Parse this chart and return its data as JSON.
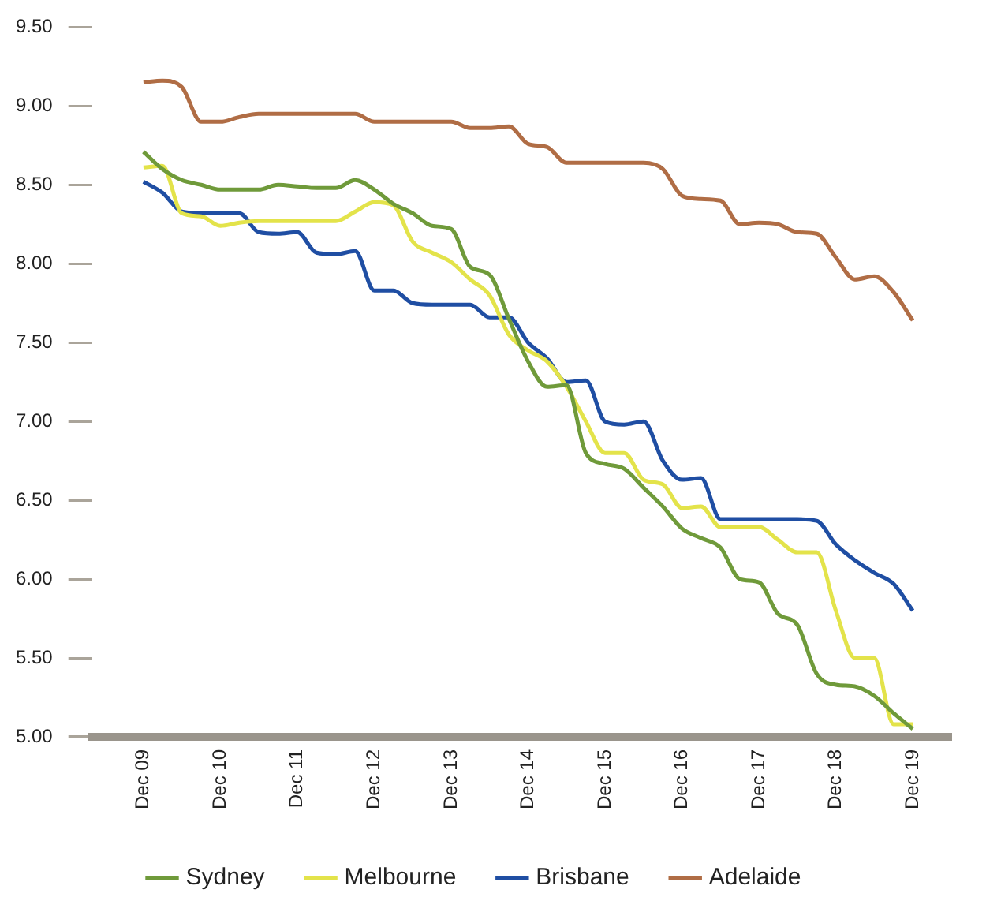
{
  "chart_data": {
    "type": "line",
    "legend": "bottom",
    "marker": "none",
    "grid": false,
    "x": [
      "2009-12",
      "2010-03",
      "2010-06",
      "2010-09",
      "2010-12",
      "2011-03",
      "2011-06",
      "2011-09",
      "2011-12",
      "2012-03",
      "2012-06",
      "2012-09",
      "2012-12",
      "2013-03",
      "2013-06",
      "2013-09",
      "2013-12",
      "2014-03",
      "2014-06",
      "2014-09",
      "2014-12",
      "2015-03",
      "2015-06",
      "2015-09",
      "2015-12",
      "2016-03",
      "2016-06",
      "2016-09",
      "2016-12",
      "2017-03",
      "2017-06",
      "2017-09",
      "2017-12",
      "2018-03",
      "2018-06",
      "2018-09",
      "2018-12",
      "2019-03",
      "2019-06",
      "2019-09",
      "2019-12"
    ],
    "xlim": [
      "2009-04",
      "2020-06"
    ],
    "xticks": [
      {
        "value": "2009-12",
        "label": "Dec 09"
      },
      {
        "value": "2010-12",
        "label": "Dec 10"
      },
      {
        "value": "2011-12",
        "label": "Dec 11"
      },
      {
        "value": "2012-12",
        "label": "Dec 12"
      },
      {
        "value": "2013-12",
        "label": "Dec 13"
      },
      {
        "value": "2014-12",
        "label": "Dec 14"
      },
      {
        "value": "2015-12",
        "label": "Dec 15"
      },
      {
        "value": "2016-12",
        "label": "Dec 16"
      },
      {
        "value": "2017-12",
        "label": "Dec 17"
      },
      {
        "value": "2018-12",
        "label": "Dec 18"
      },
      {
        "value": "2019-12",
        "label": "Dec 19"
      }
    ],
    "ylim": [
      5,
      9.5
    ],
    "yticks": [
      {
        "value": 5,
        "label": "5.00"
      },
      {
        "value": 5.5,
        "label": "5.50"
      },
      {
        "value": 6,
        "label": "6.00"
      },
      {
        "value": 6.5,
        "label": "6.50"
      },
      {
        "value": 7,
        "label": "7.00"
      },
      {
        "value": 7.5,
        "label": "7.50"
      },
      {
        "value": 8,
        "label": "8.00"
      },
      {
        "value": 8.5,
        "label": "8.50"
      },
      {
        "value": 9,
        "label": "9.00"
      },
      {
        "value": 9.5,
        "label": "9.50"
      }
    ],
    "series": [
      {
        "name": "Sydney",
        "color": "#6f9a3a",
        "values": [
          8.71,
          8.6,
          8.53,
          8.5,
          8.47,
          8.47,
          8.47,
          8.5,
          8.49,
          8.48,
          8.48,
          8.53,
          8.47,
          8.38,
          8.32,
          8.24,
          8.22,
          7.98,
          7.93,
          7.65,
          7.38,
          7.22,
          7.23,
          6.8,
          6.73,
          6.7,
          6.58,
          6.46,
          6.32,
          6.26,
          6.2,
          6.0,
          5.98,
          5.78,
          5.71,
          5.4,
          5.33,
          5.32,
          5.26,
          5.15,
          5.05
        ]
      },
      {
        "name": "Melbourne",
        "color": "#e3e34a",
        "values": [
          8.61,
          8.62,
          8.32,
          8.3,
          8.24,
          8.26,
          8.27,
          8.27,
          8.27,
          8.27,
          8.27,
          8.33,
          8.39,
          8.37,
          8.14,
          8.07,
          8.01,
          7.9,
          7.8,
          7.55,
          7.45,
          7.38,
          7.22,
          7.0,
          6.8,
          6.8,
          6.63,
          6.6,
          6.45,
          6.46,
          6.33,
          6.33,
          6.33,
          6.25,
          6.17,
          6.17,
          5.8,
          5.5,
          5.5,
          5.08,
          5.08
        ]
      },
      {
        "name": "Brisbane",
        "color": "#1f4ea3",
        "values": [
          8.52,
          8.45,
          8.33,
          8.32,
          8.32,
          8.32,
          8.2,
          8.19,
          8.2,
          8.07,
          8.06,
          8.08,
          7.83,
          7.83,
          7.75,
          7.74,
          7.74,
          7.74,
          7.66,
          7.66,
          7.5,
          7.4,
          7.25,
          7.26,
          7.0,
          6.98,
          7.0,
          6.75,
          6.63,
          6.64,
          6.38,
          6.38,
          6.38,
          6.38,
          6.38,
          6.37,
          6.22,
          6.12,
          6.04,
          5.97,
          5.8
        ]
      },
      {
        "name": "Adelaide",
        "color": "#b06d45",
        "values": [
          9.15,
          9.16,
          9.12,
          8.9,
          8.9,
          8.93,
          8.95,
          8.95,
          8.95,
          8.95,
          8.95,
          8.95,
          8.9,
          8.9,
          8.9,
          8.9,
          8.9,
          8.86,
          8.86,
          8.87,
          8.76,
          8.74,
          8.64,
          8.64,
          8.64,
          8.64,
          8.64,
          8.6,
          8.43,
          8.41,
          8.4,
          8.25,
          8.26,
          8.25,
          8.2,
          8.19,
          8.04,
          7.9,
          7.92,
          7.82,
          7.64
        ]
      }
    ]
  }
}
